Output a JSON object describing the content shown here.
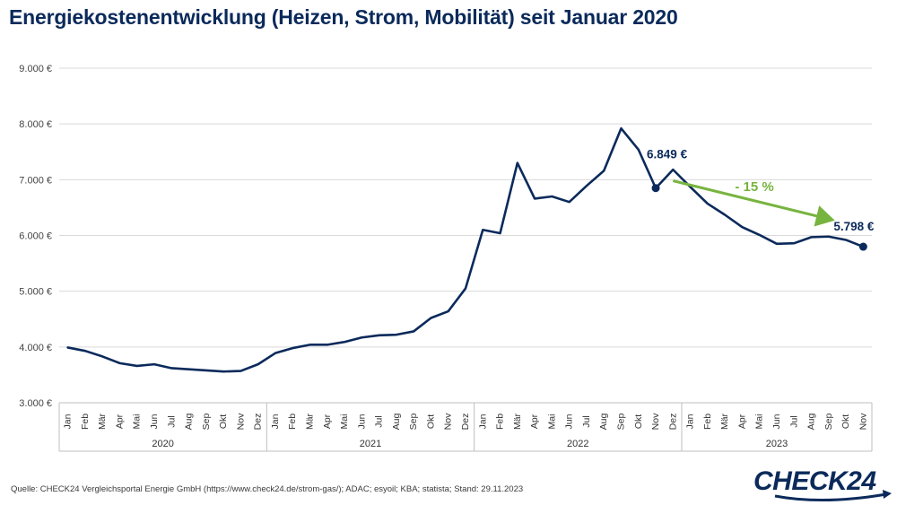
{
  "title": "Energiekostenentwicklung (Heizen, Strom, Mobilität) seit Januar 2020",
  "source": "Quelle: CHECK24 Vergleichsportal Energie GmbH (https://www.check24.de/strom-gas/); ADAC; esyoil; KBA; statista; Stand: 29.11.2023",
  "logo": {
    "text": "CHECK24"
  },
  "colors": {
    "line": "#0b2a5b",
    "accent": "#77b43f",
    "grid": "#d9d9d9"
  },
  "chart_data": {
    "type": "line",
    "title": "Energiekostenentwicklung (Heizen, Strom, Mobilität) seit Januar 2020",
    "ylim": [
      3000,
      9000
    ],
    "yticks": [
      3000,
      4000,
      5000,
      6000,
      7000,
      8000,
      9000
    ],
    "ytick_labels": [
      "3.000 €",
      "4.000 €",
      "5.000 €",
      "6.000 €",
      "7.000 €",
      "8.000 €",
      "9.000 €"
    ],
    "years": [
      "2020",
      "2021",
      "2022",
      "2023"
    ],
    "x": [
      "Jan",
      "Feb",
      "Mär",
      "Apr",
      "Mai",
      "Jun",
      "Jul",
      "Aug",
      "Sep",
      "Okt",
      "Nov",
      "Dez",
      "Jan",
      "Feb",
      "Mär",
      "Apr",
      "Mai",
      "Jun",
      "Jul",
      "Aug",
      "Sep",
      "Okt",
      "Nov",
      "Dez",
      "Jan",
      "Feb",
      "Mär",
      "Apr",
      "Mai",
      "Jun",
      "Jul",
      "Aug",
      "Sep",
      "Okt",
      "Nov",
      "Dez",
      "Jan",
      "Feb",
      "Mär",
      "Apr",
      "Mai",
      "Jun",
      "Jul",
      "Aug",
      "Sep",
      "Okt",
      "Nov"
    ],
    "values": [
      3990,
      3930,
      3830,
      3710,
      3660,
      3690,
      3620,
      3600,
      3580,
      3560,
      3570,
      3690,
      3890,
      3980,
      4040,
      4040,
      4090,
      4170,
      4210,
      4220,
      4280,
      4520,
      4640,
      5050,
      6100,
      6040,
      7300,
      6660,
      6700,
      6600,
      6890,
      7160,
      7920,
      7540,
      6849,
      7180,
      6870,
      6570,
      6370,
      6150,
      6010,
      5850,
      5860,
      5970,
      5980,
      5920,
      5798
    ],
    "grid": true,
    "legend": "none",
    "labeled_points": [
      {
        "index": 34,
        "label": "6.849 €"
      },
      {
        "index": 46,
        "label": "5.798 €"
      }
    ],
    "annotation": {
      "text": "- 15 %",
      "from_index": 35,
      "to_index": 44
    }
  }
}
